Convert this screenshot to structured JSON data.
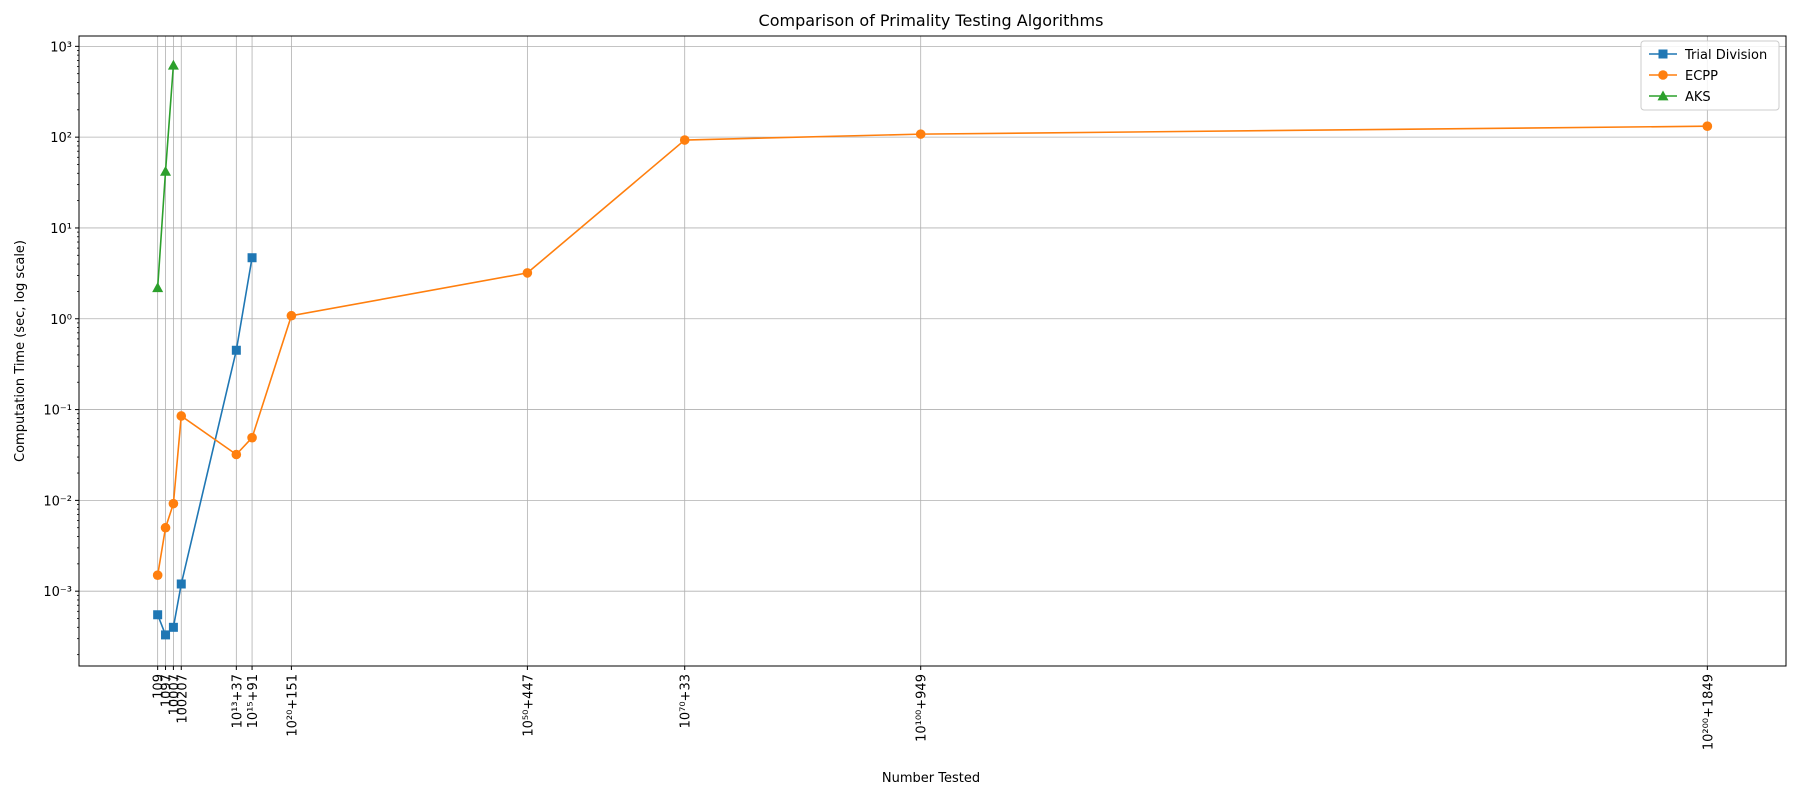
{
  "chart_data": {
    "type": "line",
    "title": "Comparison of Primality Testing Algorithms",
    "xlabel": "Number Tested",
    "ylabel": "Computation Time (sec, log scale)",
    "yscale": "log",
    "ylim": [
      0.00015,
      1300
    ],
    "yticks": [
      {
        "value": 0.001,
        "label": "10⁻³"
      },
      {
        "value": 0.01,
        "label": "10⁻²"
      },
      {
        "value": 0.1,
        "label": "10⁻¹"
      },
      {
        "value": 1,
        "label": "10⁰"
      },
      {
        "value": 10,
        "label": "10¹"
      },
      {
        "value": 100,
        "label": "10²"
      },
      {
        "value": 1000,
        "label": "10³"
      }
    ],
    "x_categories": [
      {
        "label": "109",
        "digits": 3
      },
      {
        "label": "1097",
        "digits": 4
      },
      {
        "label": "10007",
        "digits": 5
      },
      {
        "label": "100207",
        "digits": 6
      },
      {
        "label": "10¹³+37",
        "digits": 13
      },
      {
        "label": "10¹⁵+91",
        "digits": 15
      },
      {
        "label": "10²⁰+151",
        "digits": 20
      },
      {
        "label": "10⁵⁰+447",
        "digits": 50
      },
      {
        "label": "10⁷⁰+33",
        "digits": 70
      },
      {
        "label": "10¹⁰⁰+949",
        "digits": 100
      },
      {
        "label": "10²⁰⁰+1849",
        "digits": 200
      }
    ],
    "xlim_digits": [
      -7,
      210
    ],
    "grid": true,
    "legend_position": "top-right",
    "series": [
      {
        "name": "Trial Division",
        "color": "#1f77b4",
        "marker": "square",
        "x_index": [
          0,
          1,
          2,
          3,
          4,
          5
        ],
        "values": [
          0.00055,
          0.00033,
          0.0004,
          0.0012,
          0.45,
          4.7
        ]
      },
      {
        "name": "ECPP",
        "color": "#ff7f0e",
        "marker": "circle",
        "x_index": [
          0,
          1,
          2,
          3,
          4,
          5,
          6,
          7,
          8,
          9,
          10
        ],
        "values": [
          0.0015,
          0.005,
          0.0092,
          0.085,
          0.032,
          0.049,
          1.08,
          3.2,
          93,
          108,
          132
        ]
      },
      {
        "name": "AKS",
        "color": "#2ca02c",
        "marker": "triangle",
        "x_index": [
          0,
          1,
          2
        ],
        "values": [
          2.2,
          42,
          620
        ]
      }
    ]
  }
}
